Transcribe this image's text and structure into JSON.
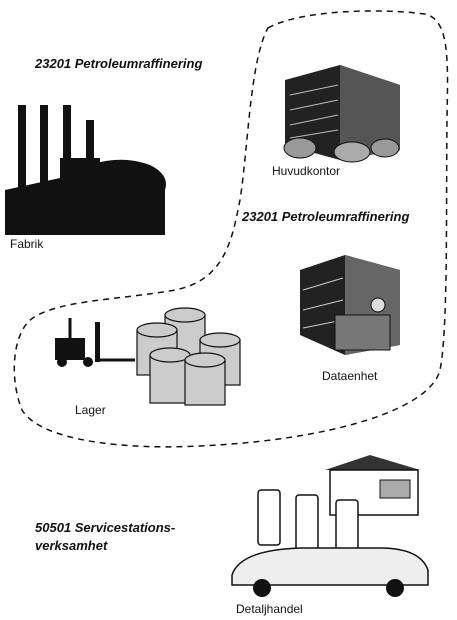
{
  "regions": [
    {
      "code_label": "23201 Petroleumraffinering"
    },
    {
      "code_label": "23201 Petroleumraffinering"
    },
    {
      "code_label": "50501 Servicestations-",
      "code_label_line2": "verksamhet"
    }
  ],
  "nodes": [
    {
      "label": "Fabrik"
    },
    {
      "label": "Huvudkontor"
    },
    {
      "label": "Dataenhet"
    },
    {
      "label": "Lager"
    },
    {
      "label": "Detaljhandel"
    }
  ]
}
